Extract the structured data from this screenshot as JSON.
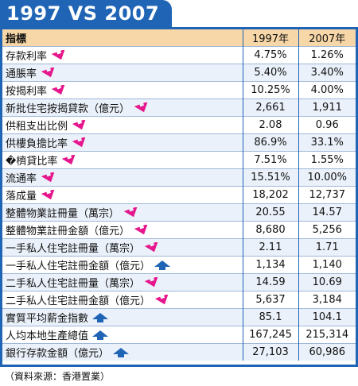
{
  "title": "1997 VS 2007",
  "colors": {
    "accent": "#1f64b5",
    "header_bg": "#f7d7a8",
    "down": "#e6168c",
    "up": "#1f64b5"
  },
  "headers": {
    "indicator": "指標",
    "year1": "1997年",
    "year2": "2007年"
  },
  "rows": [
    {
      "label": "存款利率",
      "arrow": "down-arrow-icon",
      "v1997": "4.75%",
      "v2007": "1.26%"
    },
    {
      "label": "通脹率",
      "arrow": "down-arrow-icon",
      "v1997": "5.40%",
      "v2007": "3.40%"
    },
    {
      "label": "按揭利率",
      "arrow": "down-arrow-icon",
      "v1997": "10.25%",
      "v2007": "4.00%"
    },
    {
      "label": "新批住宅按揭貸款（億元）",
      "arrow": "down-arrow-icon",
      "v1997": "2,661",
      "v2007": "1,911"
    },
    {
      "label": "供租支出比例",
      "arrow": "down-arrow-icon",
      "v1997": "2.08",
      "v2007": "0.96"
    },
    {
      "label": "供樓負擔比率",
      "arrow": "down-arrow-icon",
      "v1997": "86.9%",
      "v2007": "33.1%"
    },
    {
      "label": "�櫅貸比率",
      "arrow": "down-arrow-icon",
      "v1997": "7.51%",
      "v2007": "1.55%"
    },
    {
      "label": "流通率",
      "arrow": "down-arrow-icon",
      "v1997": "15.51%",
      "v2007": "10.00%"
    },
    {
      "label": "落成量",
      "arrow": "down-arrow-icon",
      "v1997": "18,202",
      "v2007": "12,737"
    },
    {
      "label": "整體物業註冊量（萬宗）",
      "arrow": "down-arrow-icon",
      "v1997": "20.55",
      "v2007": "14.57"
    },
    {
      "label": "整體物業註冊金額（億元）",
      "arrow": "down-arrow-icon",
      "v1997": "8,680",
      "v2007": "5,256"
    },
    {
      "label": "一手私人住宅註冊量（萬宗）",
      "arrow": "down-arrow-icon",
      "v1997": "2.11",
      "v2007": "1.71"
    },
    {
      "label": "一手私人住宅註冊金額（億元）",
      "arrow": "up-arrow-icon",
      "v1997": "1,134",
      "v2007": "1,140"
    },
    {
      "label": "二手私人住宅註冊量（萬宗）",
      "arrow": "down-arrow-icon",
      "v1997": "14.59",
      "v2007": "10.69"
    },
    {
      "label": "二手私人住宅註冊金額（億元）",
      "arrow": "down-arrow-icon",
      "v1997": "5,637",
      "v2007": "3,184"
    },
    {
      "label": "實質平均薪金指數",
      "arrow": "up-arrow-icon",
      "v1997": "85.1",
      "v2007": "104.1"
    },
    {
      "label": "人均本地生產總值",
      "arrow": "up-arrow-icon",
      "v1997": "167,245",
      "v2007": "215,314"
    },
    {
      "label": "銀行存款金額（億元）",
      "arrow": "up-arrow-icon",
      "v1997": "27,103",
      "v2007": "60,986"
    }
  ],
  "source": "（資料來源：香港置業）"
}
